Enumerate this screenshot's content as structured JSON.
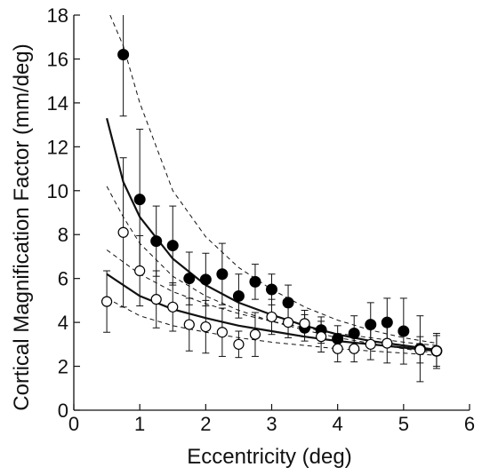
{
  "chart_data": {
    "type": "scatter",
    "xlabel": "Eccentricity (deg)",
    "ylabel": "Cortical Magnification Factor (mm/deg)",
    "xlim": [
      0,
      6
    ],
    "ylim": [
      0,
      18
    ],
    "xticks": [
      "0",
      "1",
      "2",
      "3",
      "4",
      "5",
      "6"
    ],
    "yticks": [
      "0",
      "2",
      "4",
      "6",
      "8",
      "10",
      "12",
      "14",
      "16",
      "18"
    ],
    "grid": false,
    "legend": "none",
    "series": [
      {
        "marker": "filled-circle",
        "color": "#000000",
        "x": [
          0.75,
          1.0,
          1.25,
          1.5,
          1.75,
          2.0,
          2.25,
          2.5,
          2.75,
          3.0,
          3.25,
          3.5,
          3.75,
          4.0,
          4.25,
          4.5,
          4.75,
          5.0,
          5.25,
          5.5
        ],
        "y": [
          16.2,
          9.6,
          7.7,
          7.5,
          6.0,
          5.95,
          6.2,
          5.2,
          5.85,
          5.5,
          4.9,
          3.75,
          3.65,
          3.25,
          3.5,
          3.9,
          4.0,
          3.6,
          2.8,
          2.7
        ],
        "err": [
          2.8,
          3.2,
          1.6,
          1.8,
          1.2,
          1.2,
          1.4,
          1.0,
          0.8,
          0.7,
          0.8,
          0.6,
          0.6,
          0.6,
          0.8,
          1.0,
          1.1,
          1.5,
          1.5,
          0.8
        ]
      },
      {
        "marker": "open-circle",
        "color": "#000000",
        "x": [
          0.5,
          0.75,
          1.0,
          1.25,
          1.5,
          1.75,
          2.0,
          2.25,
          2.5,
          2.75,
          3.0,
          3.25,
          3.5,
          3.75,
          4.0,
          4.25,
          4.5,
          4.75,
          5.25,
          5.5
        ],
        "y": [
          4.95,
          8.1,
          6.35,
          5.05,
          4.7,
          3.9,
          3.8,
          3.55,
          3.0,
          3.45,
          4.25,
          4.0,
          3.95,
          3.35,
          2.8,
          2.8,
          3.0,
          3.05,
          2.75,
          2.7
        ],
        "err": [
          1.4,
          3.4,
          1.6,
          1.3,
          1.1,
          1.2,
          1.2,
          1.1,
          0.6,
          1.0,
          0.8,
          0.7,
          0.6,
          0.7,
          0.6,
          0.6,
          0.7,
          0.9,
          0.6,
          0.7
        ]
      }
    ],
    "fits": [
      {
        "line": "solid",
        "x": [
          0.5,
          0.75,
          1.0,
          1.5,
          2.0,
          2.5,
          3.0,
          3.5,
          4.0,
          4.5,
          5.0,
          5.5
        ],
        "y": [
          13.3,
          10.4,
          8.8,
          6.9,
          5.7,
          4.9,
          4.35,
          3.85,
          3.45,
          3.15,
          2.95,
          2.75
        ]
      },
      {
        "line": "solid",
        "x": [
          0.5,
          1.0,
          1.5,
          2.0,
          2.5,
          3.0,
          3.5,
          4.0,
          4.5,
          5.0,
          5.5
        ],
        "y": [
          6.2,
          5.2,
          4.6,
          4.2,
          3.85,
          3.6,
          3.35,
          3.15,
          3.0,
          2.85,
          2.7
        ]
      },
      {
        "line": "dashed",
        "x": [
          0.55,
          0.75,
          1.0,
          1.5,
          2.0,
          2.5,
          3.0,
          3.5,
          4.0,
          4.5,
          5.0,
          5.5
        ],
        "y": [
          18.0,
          16.6,
          14.0,
          10.0,
          7.9,
          6.5,
          5.5,
          4.7,
          4.1,
          3.65,
          3.3,
          3.05
        ]
      },
      {
        "line": "dashed",
        "x": [
          0.5,
          0.75,
          1.0,
          1.5,
          2.0,
          2.5,
          3.0,
          3.5,
          4.0,
          4.5,
          5.0,
          5.5
        ],
        "y": [
          10.2,
          8.8,
          7.6,
          6.1,
          5.2,
          4.55,
          4.05,
          3.65,
          3.3,
          3.05,
          2.8,
          2.6
        ]
      },
      {
        "line": "dashed",
        "x": [
          0.5,
          1.0,
          1.5,
          2.0,
          2.5,
          3.0,
          3.5,
          4.0,
          4.5,
          5.0,
          5.5
        ],
        "y": [
          7.3,
          6.2,
          5.4,
          4.85,
          4.4,
          4.05,
          3.75,
          3.5,
          3.3,
          3.1,
          2.95
        ]
      },
      {
        "line": "dashed",
        "x": [
          0.5,
          1.0,
          1.5,
          2.0,
          2.5,
          3.0,
          3.5,
          4.0,
          4.5,
          5.0,
          5.5
        ],
        "y": [
          5.1,
          4.3,
          3.85,
          3.55,
          3.3,
          3.1,
          2.95,
          2.8,
          2.7,
          2.6,
          2.5
        ]
      }
    ]
  }
}
